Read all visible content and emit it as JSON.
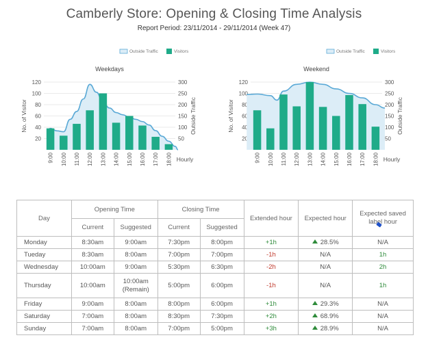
{
  "report": {
    "title": "Camberly Store: Opening & Closing Time Analysis",
    "subtitle": "Report Period: 23/11/2014 - 29/11/2014 (Week 47)"
  },
  "colors": {
    "bar": "#1fab89",
    "line": "#5aa9d6",
    "area": "#dcedf7",
    "grid": "#e3e3e3",
    "axis": "#555555"
  },
  "chart_data": [
    {
      "type": "bar",
      "title": "Weekdays",
      "categories": [
        "9:00",
        "10:00",
        "11:00",
        "12:00",
        "13:00",
        "14:00",
        "15:00",
        "16:00",
        "17:00",
        "18:00"
      ],
      "series": [
        {
          "name": "Visitors",
          "axis": "left",
          "values": [
            38,
            25,
            46,
            70,
            100,
            48,
            60,
            43,
            23,
            10
          ]
        },
        {
          "name": "Outside Traffic",
          "axis": "right",
          "type": "area",
          "x": [
            -0.2,
            0,
            0.5,
            1,
            1.5,
            2,
            2.5,
            3,
            3.5,
            4,
            4.5,
            5,
            5.5,
            6,
            6.5,
            7,
            7.5,
            8,
            8.5,
            9,
            9.5,
            10.2
          ],
          "values": [
            90,
            95,
            84,
            80,
            135,
            170,
            225,
            290,
            255,
            210,
            185,
            165,
            155,
            145,
            135,
            125,
            110,
            85,
            60,
            38,
            15,
            0
          ]
        }
      ],
      "ylabel": "No. of Visitor",
      "y2label": "Outside Traffic",
      "xlabel": "Hourly",
      "ylim": [
        0,
        120
      ],
      "yticks": [
        20,
        40,
        60,
        80,
        100,
        120
      ],
      "y2lim": [
        0,
        300
      ],
      "y2ticks": [
        50,
        100,
        150,
        200,
        250,
        300
      ],
      "legend": [
        "Outside Traffic",
        "Visitors"
      ]
    },
    {
      "type": "bar",
      "title": "Weekend",
      "categories": [
        "9:00",
        "10:00",
        "11:00",
        "12:00",
        "13:00",
        "14:00",
        "15:00",
        "16:00",
        "17:00",
        "18:00"
      ],
      "series": [
        {
          "name": "Visitors",
          "axis": "left",
          "values": [
            70,
            38,
            98,
            77,
            120,
            76,
            60,
            97,
            81,
            41
          ]
        },
        {
          "name": "Outside Traffic",
          "axis": "right",
          "type": "area",
          "x": [
            -0.8,
            0,
            1,
            1.5,
            2,
            3,
            4,
            5,
            6,
            7,
            8,
            9,
            9.8
          ],
          "values": [
            245,
            247,
            240,
            220,
            260,
            290,
            300,
            290,
            270,
            250,
            230,
            200,
            185
          ]
        }
      ],
      "ylabel": "No. of Visitor",
      "y2label": "Outside Traffic",
      "xlabel": "Hourly",
      "ylim": [
        0,
        120
      ],
      "yticks": [
        20,
        40,
        60,
        80,
        100,
        120
      ],
      "y2lim": [
        0,
        300
      ],
      "y2ticks": [
        50,
        100,
        150,
        200,
        250,
        300
      ],
      "legend": [
        "Outside Traffic",
        "Visitors"
      ]
    }
  ],
  "table": {
    "headers": {
      "day": "Day",
      "opening": "Opening Time",
      "closing": "Closing Time",
      "extended": "Extended hour",
      "expected": "Expected hour",
      "saved": "Expected saved label hour",
      "current": "Current",
      "suggested": "Suggested"
    },
    "rows": [
      {
        "day": "Monday",
        "open_current": "8:30am",
        "open_suggested": "9:00am",
        "close_current": "7:30pm",
        "close_suggested": "8:00pm",
        "extended": "+1h",
        "extended_tone": "green",
        "expected": "28.5%",
        "expected_up": true,
        "saved": "N/A",
        "saved_tone": "plain"
      },
      {
        "day": "Tueday",
        "open_current": "8:30am",
        "open_suggested": "8:00am",
        "close_current": "7:00pm",
        "close_suggested": "7:00pm",
        "extended": "-1h",
        "extended_tone": "red",
        "expected": "N/A",
        "expected_up": false,
        "saved": "1h",
        "saved_tone": "green"
      },
      {
        "day": "Wednesday",
        "open_current": "10:00am",
        "open_suggested": "9:00am",
        "close_current": "5:30pm",
        "close_suggested": "6:30pm",
        "extended": "-2h",
        "extended_tone": "red",
        "expected": "N/A",
        "expected_up": false,
        "saved": "2h",
        "saved_tone": "green"
      },
      {
        "day": "Thursday",
        "open_current": "10:00am",
        "open_suggested": "10:00am (Remain)",
        "close_current": "5:00pm",
        "close_suggested": "6:00pm",
        "extended": "-1h",
        "extended_tone": "red",
        "expected": "N/A",
        "expected_up": false,
        "saved": "1h",
        "saved_tone": "green"
      },
      {
        "day": "Friday",
        "open_current": "9:00am",
        "open_suggested": "8:00am",
        "close_current": "8:00pm",
        "close_suggested": "6:00pm",
        "extended": "+1h",
        "extended_tone": "green",
        "expected": "29.3%",
        "expected_up": true,
        "saved": "N/A",
        "saved_tone": "plain"
      },
      {
        "day": "Saturday",
        "open_current": "7:00am",
        "open_suggested": "8:00am",
        "close_current": "8:30pm",
        "close_suggested": "7:30pm",
        "extended": "+2h",
        "extended_tone": "green",
        "expected": "68.9%",
        "expected_up": true,
        "saved": "N/A",
        "saved_tone": "plain"
      },
      {
        "day": "Sunday",
        "open_current": "7:00am",
        "open_suggested": "8:00am",
        "close_current": "7:00pm",
        "close_suggested": "5:00pm",
        "extended": "+3h",
        "extended_tone": "green",
        "expected": "28.9%",
        "expected_up": true,
        "saved": "N/A",
        "saved_tone": "plain"
      }
    ]
  }
}
